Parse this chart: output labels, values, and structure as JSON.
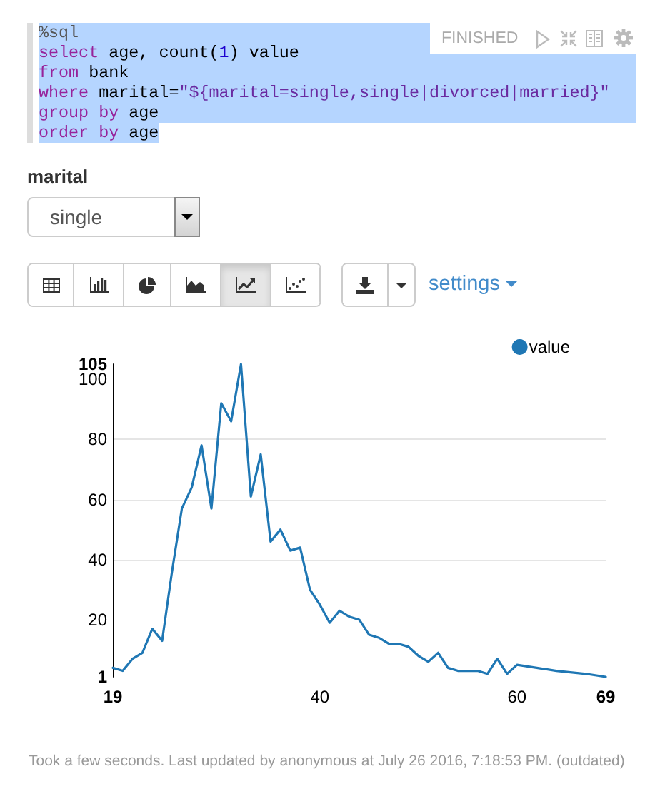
{
  "chart_data": {
    "type": "line",
    "x": [
      19,
      20,
      21,
      22,
      23,
      24,
      25,
      26,
      27,
      28,
      29,
      30,
      31,
      32,
      33,
      34,
      35,
      36,
      37,
      38,
      39,
      40,
      41,
      42,
      43,
      44,
      45,
      46,
      47,
      48,
      49,
      50,
      51,
      52,
      53,
      54,
      55,
      56,
      57,
      58,
      59,
      60,
      62,
      64,
      67,
      69
    ],
    "series": [
      {
        "name": "value",
        "color": "#1f77b4",
        "values": [
          4,
          3,
          7,
          9,
          17,
          13,
          36,
          57,
          64,
          78,
          57,
          92,
          86,
          105,
          61,
          75,
          46,
          50,
          43,
          44,
          30,
          25,
          19,
          23,
          21,
          20,
          15,
          14,
          12,
          12,
          11,
          8,
          6,
          9,
          4,
          3,
          3,
          3,
          2,
          7,
          2,
          5,
          4,
          3,
          2,
          1
        ]
      }
    ],
    "xlim": [
      19,
      69
    ],
    "xticks": [
      19,
      40,
      60,
      69
    ],
    "ylim": [
      1,
      105
    ],
    "yticks": [
      1,
      20,
      40,
      60,
      80,
      100,
      105
    ],
    "grid": true,
    "legend": "top right",
    "marker": "none",
    "line_style": "solid",
    "annotations": [
      "%sql",
      "select age, count(1) value",
      "from bank",
      "where marital=\"${marital=single,single|divorced|married}\"",
      "group by age",
      "order by age",
      "FINISHED",
      "marital",
      "single",
      "settings",
      "Took a few seconds. Last updated by anonymous at July 26 2016, 7:18:53 PM. (outdated)"
    ]
  }
}
